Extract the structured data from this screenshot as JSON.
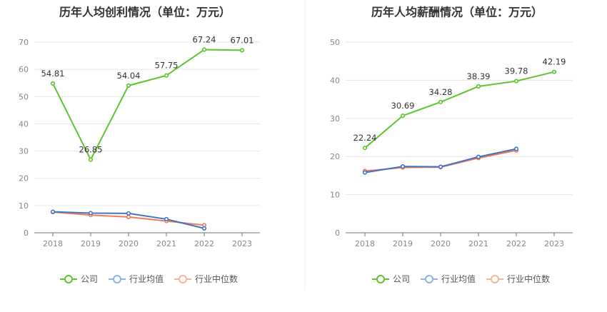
{
  "chart_data": [
    {
      "type": "line",
      "title": "历年人均创利情况（单位：万元）",
      "categories": [
        "2018",
        "2019",
        "2020",
        "2021",
        "2022",
        "2023"
      ],
      "ylim": [
        0,
        70
      ],
      "yticks": [
        0,
        10,
        20,
        30,
        40,
        50,
        60,
        70
      ],
      "series": [
        {
          "name": "公司",
          "color": "#5cc62e",
          "values": [
            54.81,
            26.85,
            54.04,
            57.75,
            67.24,
            67.01
          ],
          "labels": [
            "54.81",
            "26.85",
            "54.04",
            "57.75",
            "67.24",
            "67.01"
          ]
        },
        {
          "name": "行业均值",
          "color": "#4472c4",
          "values": [
            7.7,
            7.2,
            7.1,
            5.0,
            1.6,
            null
          ]
        },
        {
          "name": "行业中位数",
          "color": "#f07d5a",
          "values": [
            7.6,
            6.5,
            5.8,
            4.3,
            2.8,
            null
          ]
        }
      ]
    },
    {
      "type": "line",
      "title": "历年人均薪酬情况（单位：万元）",
      "categories": [
        "2018",
        "2019",
        "2020",
        "2021",
        "2022",
        "2023"
      ],
      "ylim": [
        0,
        50
      ],
      "yticks": [
        0,
        10,
        20,
        30,
        40,
        50
      ],
      "series": [
        {
          "name": "公司",
          "color": "#5cc62e",
          "values": [
            22.24,
            30.69,
            34.28,
            38.39,
            39.78,
            42.19
          ],
          "labels": [
            "22.24",
            "30.69",
            "34.28",
            "38.39",
            "39.78",
            "42.19"
          ]
        },
        {
          "name": "行业均值",
          "color": "#4472c4",
          "values": [
            15.8,
            17.4,
            17.3,
            19.9,
            22.0,
            null
          ]
        },
        {
          "name": "行业中位数",
          "color": "#f07d5a",
          "values": [
            16.2,
            17.1,
            17.2,
            19.6,
            21.6,
            null
          ]
        }
      ]
    }
  ],
  "legend": {
    "items": [
      {
        "name": "公司",
        "color": "#5cc62e"
      },
      {
        "name": "行业均值",
        "color": "#8fb2e8"
      },
      {
        "name": "行业中位数",
        "color": "#f3b59d"
      }
    ]
  }
}
